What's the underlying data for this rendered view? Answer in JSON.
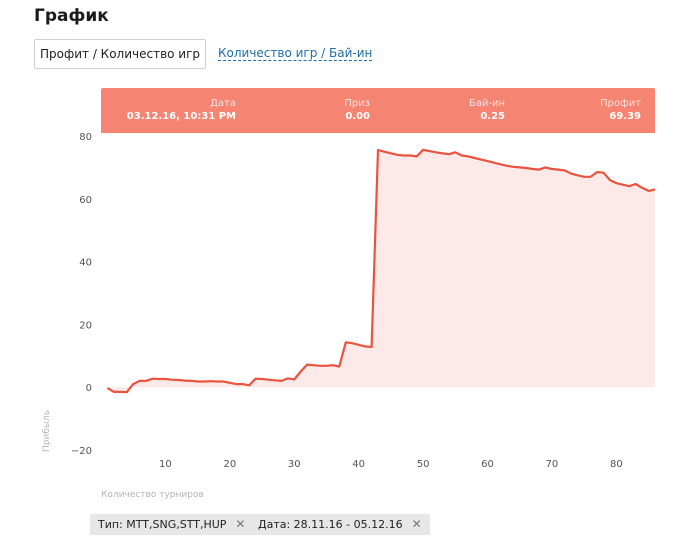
{
  "header": {
    "title": "График"
  },
  "tabs": [
    {
      "label": "Профит / Количество игр",
      "active": true
    },
    {
      "label": "Количество игр / Бай-ин",
      "active": false
    }
  ],
  "tooltip": {
    "date_label": "Дата",
    "date_value": "03.12.16, 10:31 PM",
    "prize_label": "Приз",
    "prize_value": "0.00",
    "buyin_label": "Бай-ин",
    "buyin_value": "0.25",
    "profit_label": "Профит",
    "profit_value": "69.39"
  },
  "filters": [
    {
      "text": "Тип: MTT,SNG,STT,HUP",
      "close": "✕"
    },
    {
      "text": "Дата: 28.11.16 - 05.12.16",
      "close": "✕"
    }
  ],
  "chart_data": {
    "type": "area",
    "xlabel": "Количество турниров",
    "ylabel": "Прибыль",
    "xlim": [
      0,
      86
    ],
    "ylim": [
      -20,
      80
    ],
    "xticks": [
      10,
      20,
      30,
      40,
      50,
      60,
      70,
      80
    ],
    "yticks": [
      -20,
      0,
      20,
      40,
      60,
      80
    ],
    "line_color": "#e9533f",
    "fill_color": "#fdeae8",
    "header_color": "#f58473",
    "series": [
      {
        "x": [
          1,
          2,
          3,
          4,
          5,
          6,
          7,
          8,
          9,
          10,
          11,
          12,
          13,
          14,
          15,
          16,
          17,
          18,
          19,
          20,
          21,
          22,
          23,
          24,
          25,
          26,
          27,
          28,
          29,
          30,
          31,
          32,
          33,
          34,
          35,
          36,
          37,
          38,
          39,
          40,
          41,
          42,
          43,
          44,
          45,
          46,
          47,
          48,
          49,
          50,
          51,
          52,
          53,
          54,
          55,
          56,
          57,
          58,
          59,
          60,
          61,
          62,
          63,
          64,
          65,
          66,
          67,
          68,
          69,
          70,
          71,
          72,
          73,
          74,
          75,
          76,
          77,
          78,
          79,
          80,
          81,
          82,
          83,
          84,
          85,
          86
        ],
        "y": [
          -0.3,
          -1.5,
          -1.5,
          -1.6,
          1.0,
          2.0,
          2.0,
          2.7,
          2.6,
          2.6,
          2.4,
          2.3,
          2.1,
          2.0,
          1.8,
          1.8,
          1.9,
          1.8,
          1.8,
          1.4,
          1.0,
          1.0,
          0.6,
          2.7,
          2.6,
          2.4,
          2.2,
          2.0,
          2.8,
          2.5,
          5.0,
          7.2,
          7.0,
          6.8,
          6.8,
          7.0,
          6.6,
          14.3,
          14.0,
          13.5,
          13.0,
          12.8,
          75.5,
          75.0,
          74.5,
          74.0,
          73.8,
          73.8,
          73.5,
          75.6,
          75.2,
          74.8,
          74.5,
          74.2,
          74.8,
          73.8,
          73.5,
          73.0,
          72.5,
          72.0,
          71.5,
          71.0,
          70.5,
          70.2,
          70.0,
          69.8,
          69.5,
          69.3,
          70.0,
          69.5,
          69.3,
          69.0,
          68.0,
          67.5,
          67.0,
          67.0,
          68.5,
          68.3,
          66.0,
          65.0,
          64.5,
          64.0,
          64.7,
          63.5,
          62.5,
          63.0
        ]
      }
    ]
  }
}
